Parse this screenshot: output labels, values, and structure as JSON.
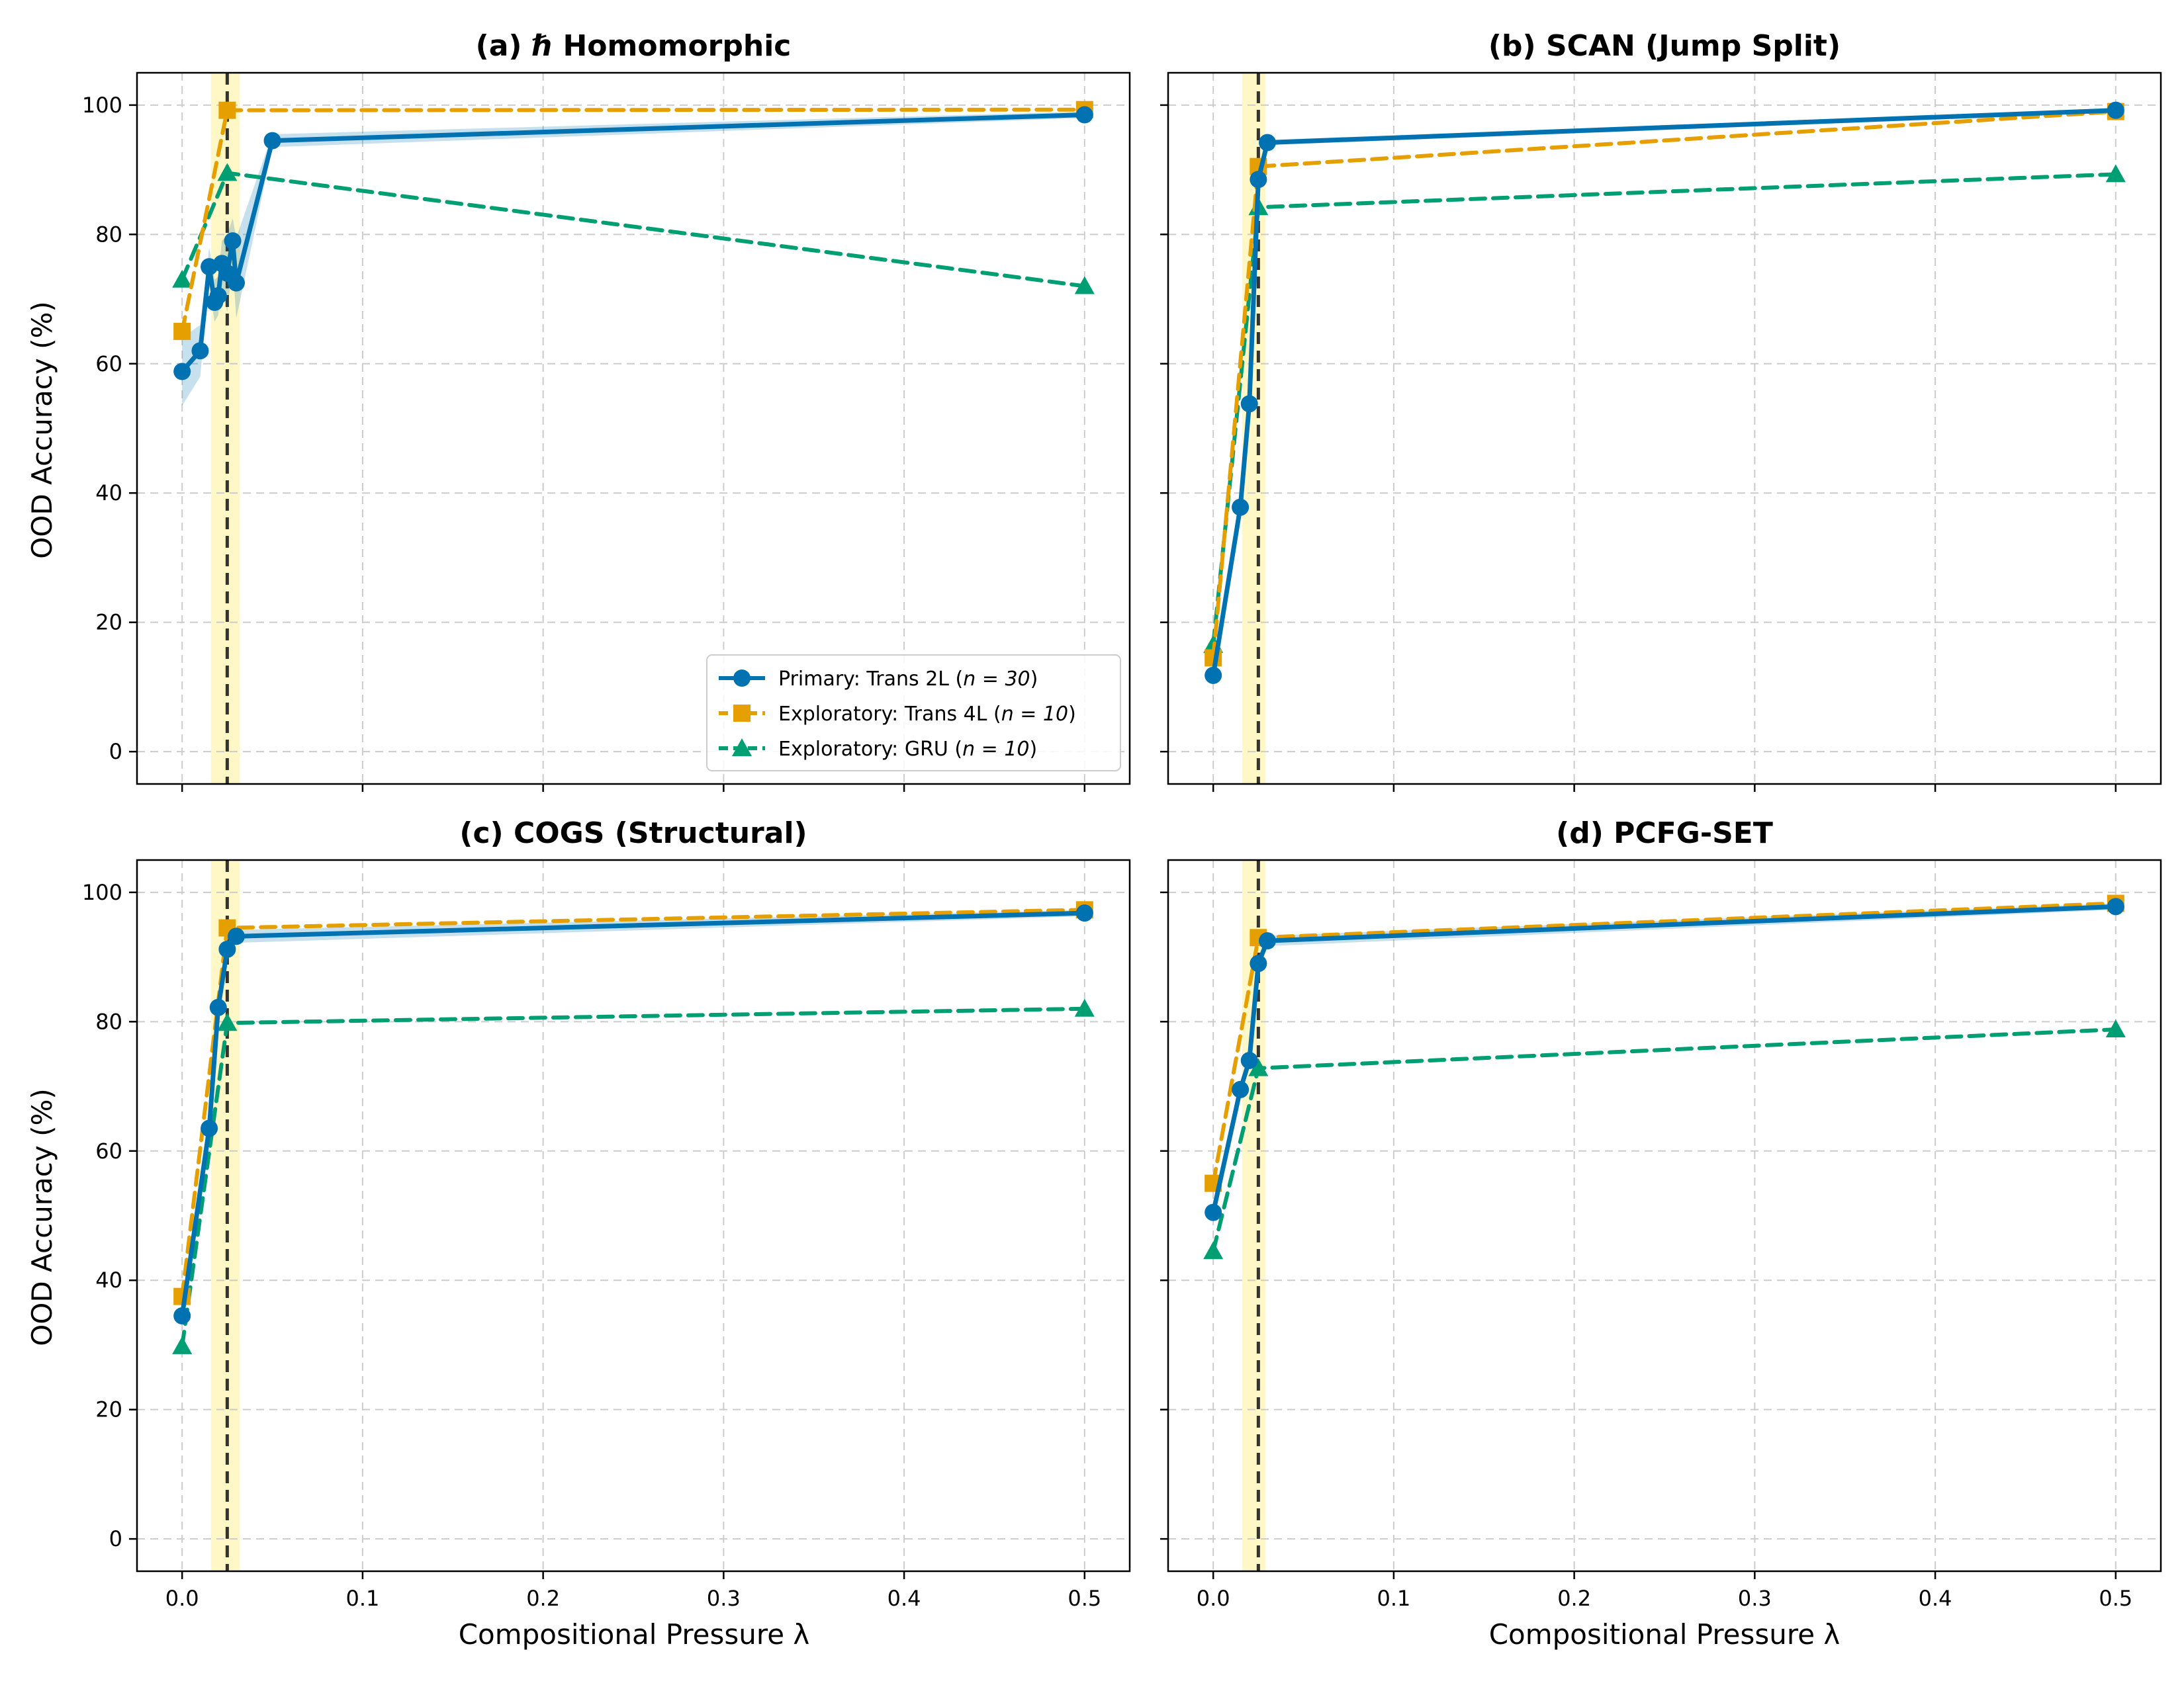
{
  "figure": {
    "ylabel": "OOD Accuracy (%)",
    "xlabel": "Compositional Pressure λ",
    "colors": {
      "primary": "#0072B2",
      "trans4l": "#E69F00",
      "gru": "#009E73",
      "threshold_band": "#FFF6BF",
      "threshold_line": "#333333",
      "grid": "#cccccc"
    },
    "legend": {
      "placement": "lower-right of panel (a)",
      "entries": [
        {
          "key": "primary",
          "label_prefix": "Primary: Trans 2L (",
          "n_label": "n = 30",
          "label_suffix": ")"
        },
        {
          "key": "trans4l",
          "label_prefix": "Exploratory: Trans 4L (",
          "n_label": "n = 10",
          "label_suffix": ")"
        },
        {
          "key": "gru",
          "label_prefix": "Exploratory: GRU (",
          "n_label": "n = 10",
          "label_suffix": ")"
        }
      ]
    }
  },
  "chart_data": [
    {
      "type": "line",
      "title": "(a) ℏ Homomorphic",
      "xlim": [
        -0.025,
        0.525
      ],
      "ylim": [
        -5,
        105
      ],
      "xticks": [
        0.0,
        0.1,
        0.2,
        0.3,
        0.4,
        0.5
      ],
      "yticks": [
        0,
        20,
        40,
        60,
        80,
        100
      ],
      "grid": true,
      "threshold": {
        "x": 0.025,
        "band": [
          0.016,
          0.032
        ]
      },
      "series": [
        {
          "key": "primary",
          "name": "Primary: Trans 2L (n = 30)",
          "marker": "circle",
          "dash": false,
          "x": [
            0.0,
            0.01,
            0.015,
            0.018,
            0.02,
            0.022,
            0.025,
            0.028,
            0.03,
            0.05,
            0.5
          ],
          "y": [
            58.8,
            62.0,
            75.0,
            69.5,
            70.5,
            75.5,
            74.0,
            79.0,
            72.5,
            94.5,
            98.5
          ],
          "band_lower": [
            53.5,
            58.0,
            72.0,
            66.5,
            67.5,
            72.0,
            68.0,
            75.5,
            67.0,
            93.5,
            98.0
          ],
          "band_upper": [
            64.0,
            66.0,
            78.0,
            73.0,
            73.5,
            79.0,
            80.0,
            82.5,
            79.5,
            95.5,
            99.0
          ]
        },
        {
          "key": "trans4l",
          "name": "Exploratory: Trans 4L (n = 10)",
          "marker": "square",
          "dash": true,
          "x": [
            0.0,
            0.025,
            0.5
          ],
          "y": [
            65.0,
            99.2,
            99.3
          ]
        },
        {
          "key": "gru",
          "name": "Exploratory: GRU (n = 10)",
          "marker": "triangle",
          "dash": true,
          "x": [
            0.0,
            0.025,
            0.5
          ],
          "y": [
            73.0,
            89.5,
            72.0
          ]
        }
      ]
    },
    {
      "type": "line",
      "title": "(b) SCAN (Jump Split)",
      "xlim": [
        -0.025,
        0.525
      ],
      "ylim": [
        -5,
        105
      ],
      "xticks": [
        0.0,
        0.1,
        0.2,
        0.3,
        0.4,
        0.5
      ],
      "yticks": [
        0,
        20,
        40,
        60,
        80,
        100
      ],
      "grid": true,
      "threshold": {
        "x": 0.025,
        "band": [
          0.016,
          0.029
        ]
      },
      "series": [
        {
          "key": "primary",
          "name": "Primary: Trans 2L (n = 30)",
          "marker": "circle",
          "dash": false,
          "x": [
            0.0,
            0.015,
            0.02,
            0.025,
            0.03,
            0.5
          ],
          "y": [
            11.8,
            37.8,
            53.8,
            88.5,
            94.2,
            99.2
          ],
          "band_lower": [
            11.2,
            37.0,
            53.0,
            88.0,
            93.8,
            98.8
          ],
          "band_upper": [
            12.4,
            38.6,
            54.6,
            89.0,
            94.6,
            99.5
          ]
        },
        {
          "key": "trans4l",
          "name": "Exploratory: Trans 4L (n = 10)",
          "marker": "square",
          "dash": true,
          "x": [
            0.0,
            0.025,
            0.5
          ],
          "y": [
            14.5,
            90.5,
            99.0
          ]
        },
        {
          "key": "gru",
          "name": "Exploratory: GRU (n = 10)",
          "marker": "triangle",
          "dash": true,
          "x": [
            0.0,
            0.025,
            0.5
          ],
          "y": [
            16.5,
            84.2,
            89.3
          ]
        }
      ]
    },
    {
      "type": "line",
      "title": "(c) COGS (Structural)",
      "xlim": [
        -0.025,
        0.525
      ],
      "ylim": [
        -5,
        105
      ],
      "xticks": [
        0.0,
        0.1,
        0.2,
        0.3,
        0.4,
        0.5
      ],
      "yticks": [
        0,
        20,
        40,
        60,
        80,
        100
      ],
      "grid": true,
      "threshold": {
        "x": 0.025,
        "band": [
          0.016,
          0.032
        ]
      },
      "series": [
        {
          "key": "primary",
          "name": "Primary: Trans 2L (n = 30)",
          "marker": "circle",
          "dash": false,
          "x": [
            0.0,
            0.015,
            0.02,
            0.025,
            0.03,
            0.5
          ],
          "y": [
            34.5,
            63.5,
            82.2,
            91.2,
            93.2,
            96.8
          ],
          "band_lower": [
            33.5,
            62.5,
            81.5,
            90.5,
            92.2,
            96.3
          ],
          "band_upper": [
            35.5,
            64.5,
            83.0,
            92.0,
            94.2,
            97.3
          ]
        },
        {
          "key": "trans4l",
          "name": "Exploratory: Trans 4L (n = 10)",
          "marker": "square",
          "dash": true,
          "x": [
            0.0,
            0.025,
            0.5
          ],
          "y": [
            37.5,
            94.5,
            97.3
          ]
        },
        {
          "key": "gru",
          "name": "Exploratory: GRU (n = 10)",
          "marker": "triangle",
          "dash": true,
          "x": [
            0.0,
            0.025,
            0.5
          ],
          "y": [
            29.8,
            79.8,
            82.0
          ]
        }
      ]
    },
    {
      "type": "line",
      "title": "(d) PCFG-SET",
      "xlim": [
        -0.025,
        0.525
      ],
      "ylim": [
        -5,
        105
      ],
      "xticks": [
        0.0,
        0.1,
        0.2,
        0.3,
        0.4,
        0.5
      ],
      "yticks": [
        0,
        20,
        40,
        60,
        80,
        100
      ],
      "grid": true,
      "threshold": {
        "x": 0.025,
        "band": [
          0.016,
          0.029
        ]
      },
      "series": [
        {
          "key": "primary",
          "name": "Primary: Trans 2L (n = 30)",
          "marker": "circle",
          "dash": false,
          "x": [
            0.0,
            0.015,
            0.02,
            0.025,
            0.03,
            0.5
          ],
          "y": [
            50.5,
            69.5,
            74.0,
            89.0,
            92.5,
            97.8
          ],
          "band_lower": [
            49.8,
            68.8,
            73.3,
            88.3,
            91.7,
            97.3
          ],
          "band_upper": [
            51.2,
            70.2,
            74.7,
            89.7,
            93.3,
            98.3
          ]
        },
        {
          "key": "trans4l",
          "name": "Exploratory: Trans 4L (n = 10)",
          "marker": "square",
          "dash": true,
          "x": [
            0.0,
            0.025,
            0.5
          ],
          "y": [
            55.0,
            93.0,
            98.3
          ]
        },
        {
          "key": "gru",
          "name": "Exploratory: GRU (n = 10)",
          "marker": "triangle",
          "dash": true,
          "x": [
            0.0,
            0.025,
            0.5
          ],
          "y": [
            44.5,
            72.8,
            78.8
          ]
        }
      ]
    }
  ]
}
